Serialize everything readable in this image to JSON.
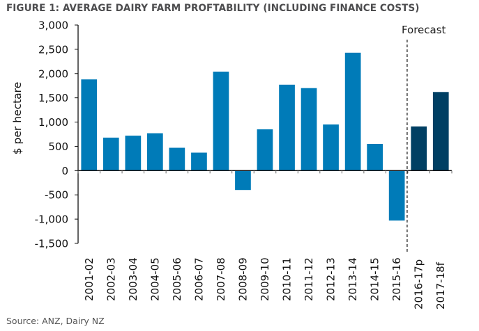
{
  "chart_data": {
    "type": "bar",
    "title": "FIGURE 1: AVERAGE DAIRY FARM PROFTABILITY (INCLUDING FINANCE COSTS)",
    "xlabel": "",
    "ylabel": "$ per hectare",
    "ylim": [
      -1500,
      3000
    ],
    "yticks": [
      3000,
      2500,
      2000,
      1500,
      1000,
      500,
      0,
      -500,
      -1000,
      -1500
    ],
    "ytick_labels": [
      "3,000",
      "2,500",
      "2,000",
      "1,500",
      "1,000",
      "500",
      "0",
      "-500",
      "-1,000",
      "-1,500"
    ],
    "grid": false,
    "categories": [
      "2001-02",
      "2002-03",
      "2003-04",
      "2004-05",
      "2005-06",
      "2006-07",
      "2007-08",
      "2008-09",
      "2009-10",
      "2010-11",
      "2011-12",
      "2012-13",
      "2013-14",
      "2014-15",
      "2015-16",
      "2016-17p",
      "2017-18f"
    ],
    "values": [
      1880,
      680,
      720,
      770,
      470,
      370,
      2040,
      -400,
      850,
      1770,
      1700,
      950,
      2430,
      550,
      -1030,
      910,
      1620
    ],
    "forecast": [
      false,
      false,
      false,
      false,
      false,
      false,
      false,
      false,
      false,
      false,
      false,
      false,
      false,
      false,
      false,
      true,
      true
    ],
    "colors": {
      "actual": "#007bb8",
      "forecast": "#003f63"
    },
    "annotation": "Forecast",
    "source": "Source: ANZ, Dairy NZ"
  }
}
